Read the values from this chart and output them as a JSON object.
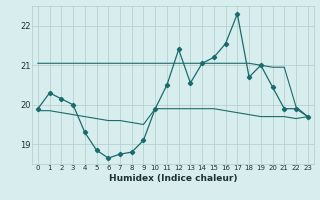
{
  "x": [
    0,
    1,
    2,
    3,
    4,
    5,
    6,
    7,
    8,
    9,
    10,
    11,
    12,
    13,
    14,
    15,
    16,
    17,
    18,
    19,
    20,
    21,
    22,
    23
  ],
  "line_main": [
    19.9,
    20.3,
    20.15,
    20.0,
    19.3,
    18.85,
    18.65,
    18.75,
    18.8,
    19.1,
    19.9,
    20.5,
    21.4,
    20.55,
    21.05,
    21.2,
    21.55,
    22.3,
    20.7,
    21.0,
    20.45,
    19.9,
    19.9,
    19.7
  ],
  "line_upper": [
    21.05,
    21.05,
    21.05,
    21.05,
    21.05,
    21.05,
    21.05,
    21.05,
    21.05,
    21.05,
    21.05,
    21.05,
    21.05,
    21.05,
    21.05,
    21.05,
    21.05,
    21.05,
    21.05,
    21.0,
    20.95,
    20.95,
    19.95,
    19.7
  ],
  "line_lower": [
    19.85,
    19.85,
    19.8,
    19.75,
    19.7,
    19.65,
    19.6,
    19.6,
    19.55,
    19.5,
    19.9,
    19.9,
    19.9,
    19.9,
    19.9,
    19.9,
    19.85,
    19.8,
    19.75,
    19.7,
    19.7,
    19.7,
    19.65,
    19.7
  ],
  "bg_color": "#d8eeee",
  "line_color": "#1a6b6b",
  "grid_color": "#b0cccc",
  "xlabel": "Humidex (Indice chaleur)",
  "ylim": [
    18.5,
    22.5
  ],
  "yticks": [
    19,
    20,
    21,
    22
  ],
  "xticks": [
    0,
    1,
    2,
    3,
    4,
    5,
    6,
    7,
    8,
    9,
    10,
    11,
    12,
    13,
    14,
    15,
    16,
    17,
    18,
    19,
    20,
    21,
    22,
    23
  ]
}
